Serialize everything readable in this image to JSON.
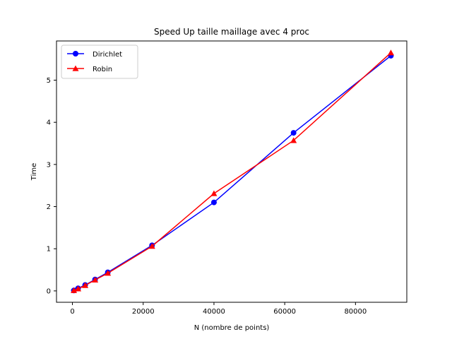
{
  "chart_data": {
    "type": "line",
    "title": "Speed Up taille maillage avec 4 proc",
    "xlabel": "N (nombre de points)",
    "ylabel": "Time",
    "xlim": [
      -4500,
      94500
    ],
    "ylim": [
      -0.27,
      5.93
    ],
    "xticks": [
      0,
      20000,
      40000,
      60000,
      80000
    ],
    "yticks": [
      0,
      1,
      2,
      3,
      4,
      5
    ],
    "grid": false,
    "legend_position": "top-left",
    "series": [
      {
        "name": "Dirichlet",
        "color": "#0000ff",
        "marker": "circle",
        "x": [
          400,
          1600,
          3600,
          6400,
          10000,
          22500,
          40000,
          62500,
          90000
        ],
        "y": [
          0.01,
          0.06,
          0.14,
          0.27,
          0.44,
          1.08,
          2.1,
          3.75,
          5.58
        ]
      },
      {
        "name": "Robin",
        "color": "#ff0000",
        "marker": "triangle",
        "x": [
          400,
          1600,
          3600,
          6400,
          10000,
          22500,
          40000,
          62500,
          90000
        ],
        "y": [
          0.01,
          0.05,
          0.13,
          0.26,
          0.42,
          1.06,
          2.31,
          3.57,
          5.65
        ]
      }
    ]
  }
}
